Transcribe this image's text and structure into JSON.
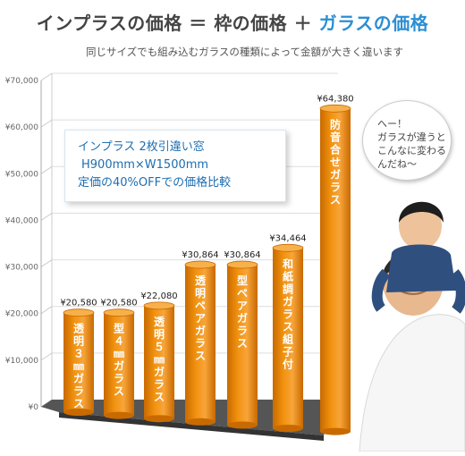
{
  "header": {
    "title_part1": "インプラスの価格",
    "title_eq": "＝",
    "title_part2": "枠の価格",
    "title_plus": "＋",
    "title_part3": "ガラスの価格",
    "subtitle": "同じサイズでも組み込むガラスの種類によって金額が大きく違います"
  },
  "info_box": {
    "line1": "インプラス 2枚引違い窓",
    "line2": "H900mm×W1500mm",
    "line3": "定価の40%OFFでの価格比較"
  },
  "speech_bubble": {
    "line1": "へー！",
    "line2": "ガラスが違うと",
    "line3": "こんなに変わる",
    "line4": "んだね～"
  },
  "colors": {
    "bar": "#f2920f",
    "bar_dark": "#c86a00",
    "accent": "#2a8fd4",
    "floor": "#555555"
  },
  "chart_data": {
    "type": "bar",
    "title": "",
    "xlabel": "",
    "ylabel": "",
    "ylim": [
      0,
      70000
    ],
    "yticks": [
      0,
      10000,
      20000,
      30000,
      40000,
      50000,
      60000,
      70000
    ],
    "ytick_labels": [
      "¥0",
      "¥10,000",
      "¥20,000",
      "¥30,000",
      "¥40,000",
      "¥50,000",
      "¥60,000",
      "¥70,000"
    ],
    "grid": true,
    "categories": [
      "透明３㎜ガラス",
      "型４㎜ガラス",
      "透明５㎜ガラス",
      "透明ペアガラス",
      "型ペアガラス",
      "和紙調ガラス組子付",
      "防音合せガラス"
    ],
    "values": [
      20580,
      20580,
      22080,
      30864,
      30864,
      34464,
      64380
    ],
    "value_labels": [
      "¥20,580",
      "¥20,580",
      "¥22,080",
      "¥30,864",
      "¥30,864",
      "¥34,464",
      "¥64,380"
    ]
  }
}
